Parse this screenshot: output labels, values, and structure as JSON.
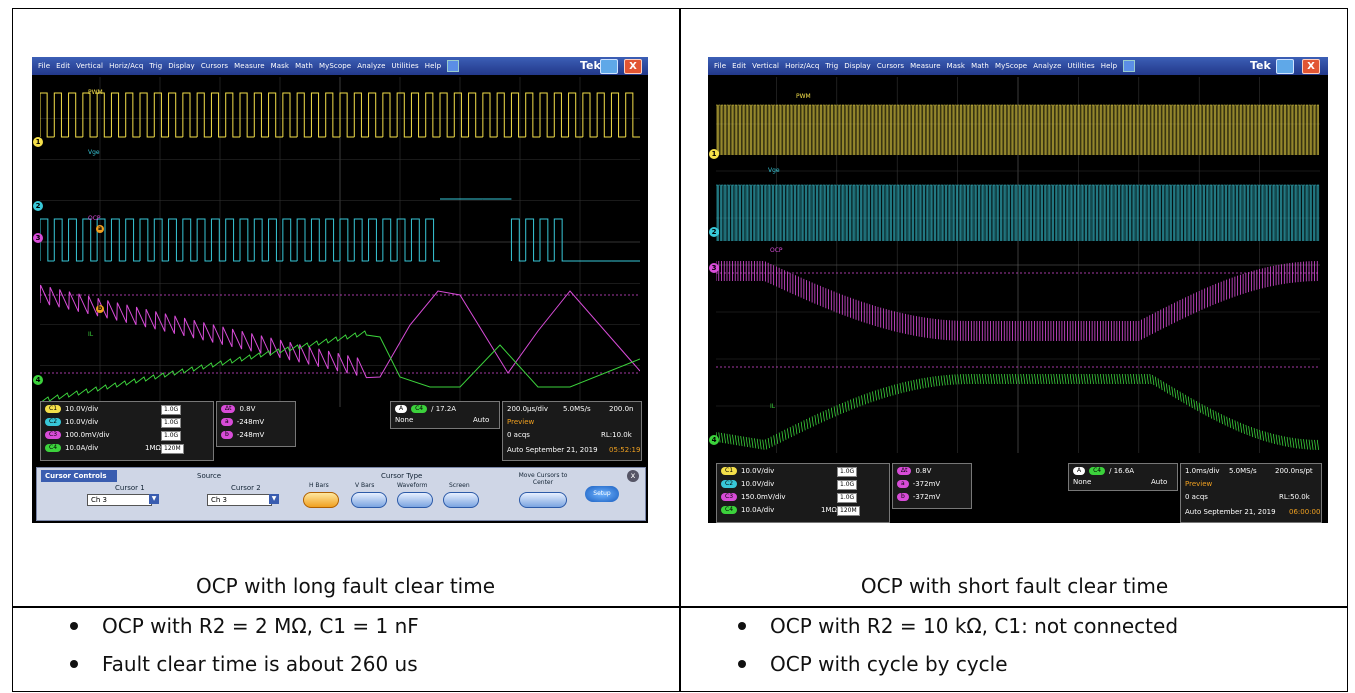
{
  "captions": {
    "left": "OCP with long fault clear time",
    "right": "OCP with short fault clear time"
  },
  "bullets": {
    "left": [
      "OCP with R2 = 2 MΩ, C1 = 1 nF",
      "Fault clear time is about 260 us"
    ],
    "right": [
      "OCP with R2 = 10 kΩ, C1: not connected",
      "OCP with cycle by cycle"
    ]
  },
  "menu_items": [
    "File",
    "Edit",
    "Vertical",
    "Horiz/Acq",
    "Trig",
    "Display",
    "Cursors",
    "Measure",
    "Mask",
    "Math",
    "MyScope",
    "Analyze",
    "Utilities",
    "Help"
  ],
  "brand": "Tek",
  "colors": {
    "ch1": "#f5e04a",
    "ch2": "#38c8d8",
    "ch3": "#d84cd8",
    "ch4": "#3cd23c",
    "menubar": "#2a44a0",
    "panel": "#cfd6e6"
  },
  "left_scope": {
    "labels": {
      "pwm": "PWM",
      "vge": "Vge",
      "ocp": "OCP",
      "il": "IL"
    },
    "channel_markers": [
      "1",
      "2",
      "3",
      "4"
    ],
    "cursor_markers": [
      "a",
      "b"
    ],
    "vert": [
      {
        "ch": "C1",
        "scale": "10.0V/div",
        "bw": "1.0G",
        "extra": ""
      },
      {
        "ch": "C2",
        "scale": "10.0V/div",
        "bw": "1.0G",
        "extra": ""
      },
      {
        "ch": "C3",
        "scale": "100.0mV/div",
        "bw": "1.0G",
        "extra": ""
      },
      {
        "ch": "C4",
        "scale": "10.0A/div",
        "bw": "120M",
        "extra": "1MΩ"
      }
    ],
    "cursors": [
      {
        "tag": "Δt",
        "value": "0.8V"
      },
      {
        "tag": "a",
        "value": "-248mV"
      },
      {
        "tag": "b",
        "value": "-248mV"
      }
    ],
    "trigger": {
      "mode": "A",
      "src": "C4",
      "level": "17.2A",
      "coupling": "None",
      "auto": "Auto"
    },
    "horizontal": {
      "scale": "200.0μs/div",
      "rate": "5.0MS/s",
      "res": "200.0n",
      "state": "Preview",
      "acqs": "0 acqs",
      "rl": "RL:10.0k",
      "date": "Auto   September 21, 2019",
      "time": "05:52:19"
    },
    "cursor_controls": {
      "title": "Cursor Controls",
      "source": "Source",
      "cursor1": "Cursor 1",
      "cursor1_value": "Ch 3",
      "cursor2": "Cursor 2",
      "cursor2_value": "Ch 3",
      "type_title": "Cursor Type",
      "types": [
        "H Bars",
        "V Bars",
        "Waveform",
        "Screen"
      ],
      "move": "Move Cursors to Center",
      "setup": "Setup"
    }
  },
  "right_scope": {
    "labels": {
      "pwm": "PWM",
      "vge": "Vge",
      "ocp": "OCP",
      "il": "IL"
    },
    "channel_markers": [
      "1",
      "2",
      "3",
      "4"
    ],
    "vert": [
      {
        "ch": "C1",
        "scale": "10.0V/div",
        "bw": "1.0G",
        "extra": ""
      },
      {
        "ch": "C2",
        "scale": "10.0V/div",
        "bw": "1.0G",
        "extra": ""
      },
      {
        "ch": "C3",
        "scale": "150.0mV/div",
        "bw": "1.0G",
        "extra": ""
      },
      {
        "ch": "C4",
        "scale": "10.0A/div",
        "bw": "120M",
        "extra": "1MΩ"
      }
    ],
    "cursors": [
      {
        "tag": "Δt",
        "value": "0.8V"
      },
      {
        "tag": "a",
        "value": "-372mV"
      },
      {
        "tag": "b",
        "value": "-372mV"
      }
    ],
    "trigger": {
      "mode": "A",
      "src": "C4",
      "level": "16.6A",
      "coupling": "None",
      "auto": "Auto"
    },
    "horizontal": {
      "scale": "1.0ms/div",
      "rate": "5.0MS/s",
      "res": "200.0ns/pt",
      "state": "Preview",
      "acqs": "0 acqs",
      "rl": "RL:50.0k",
      "date": "Auto   September 21, 2019",
      "time": "06:00:00"
    }
  }
}
